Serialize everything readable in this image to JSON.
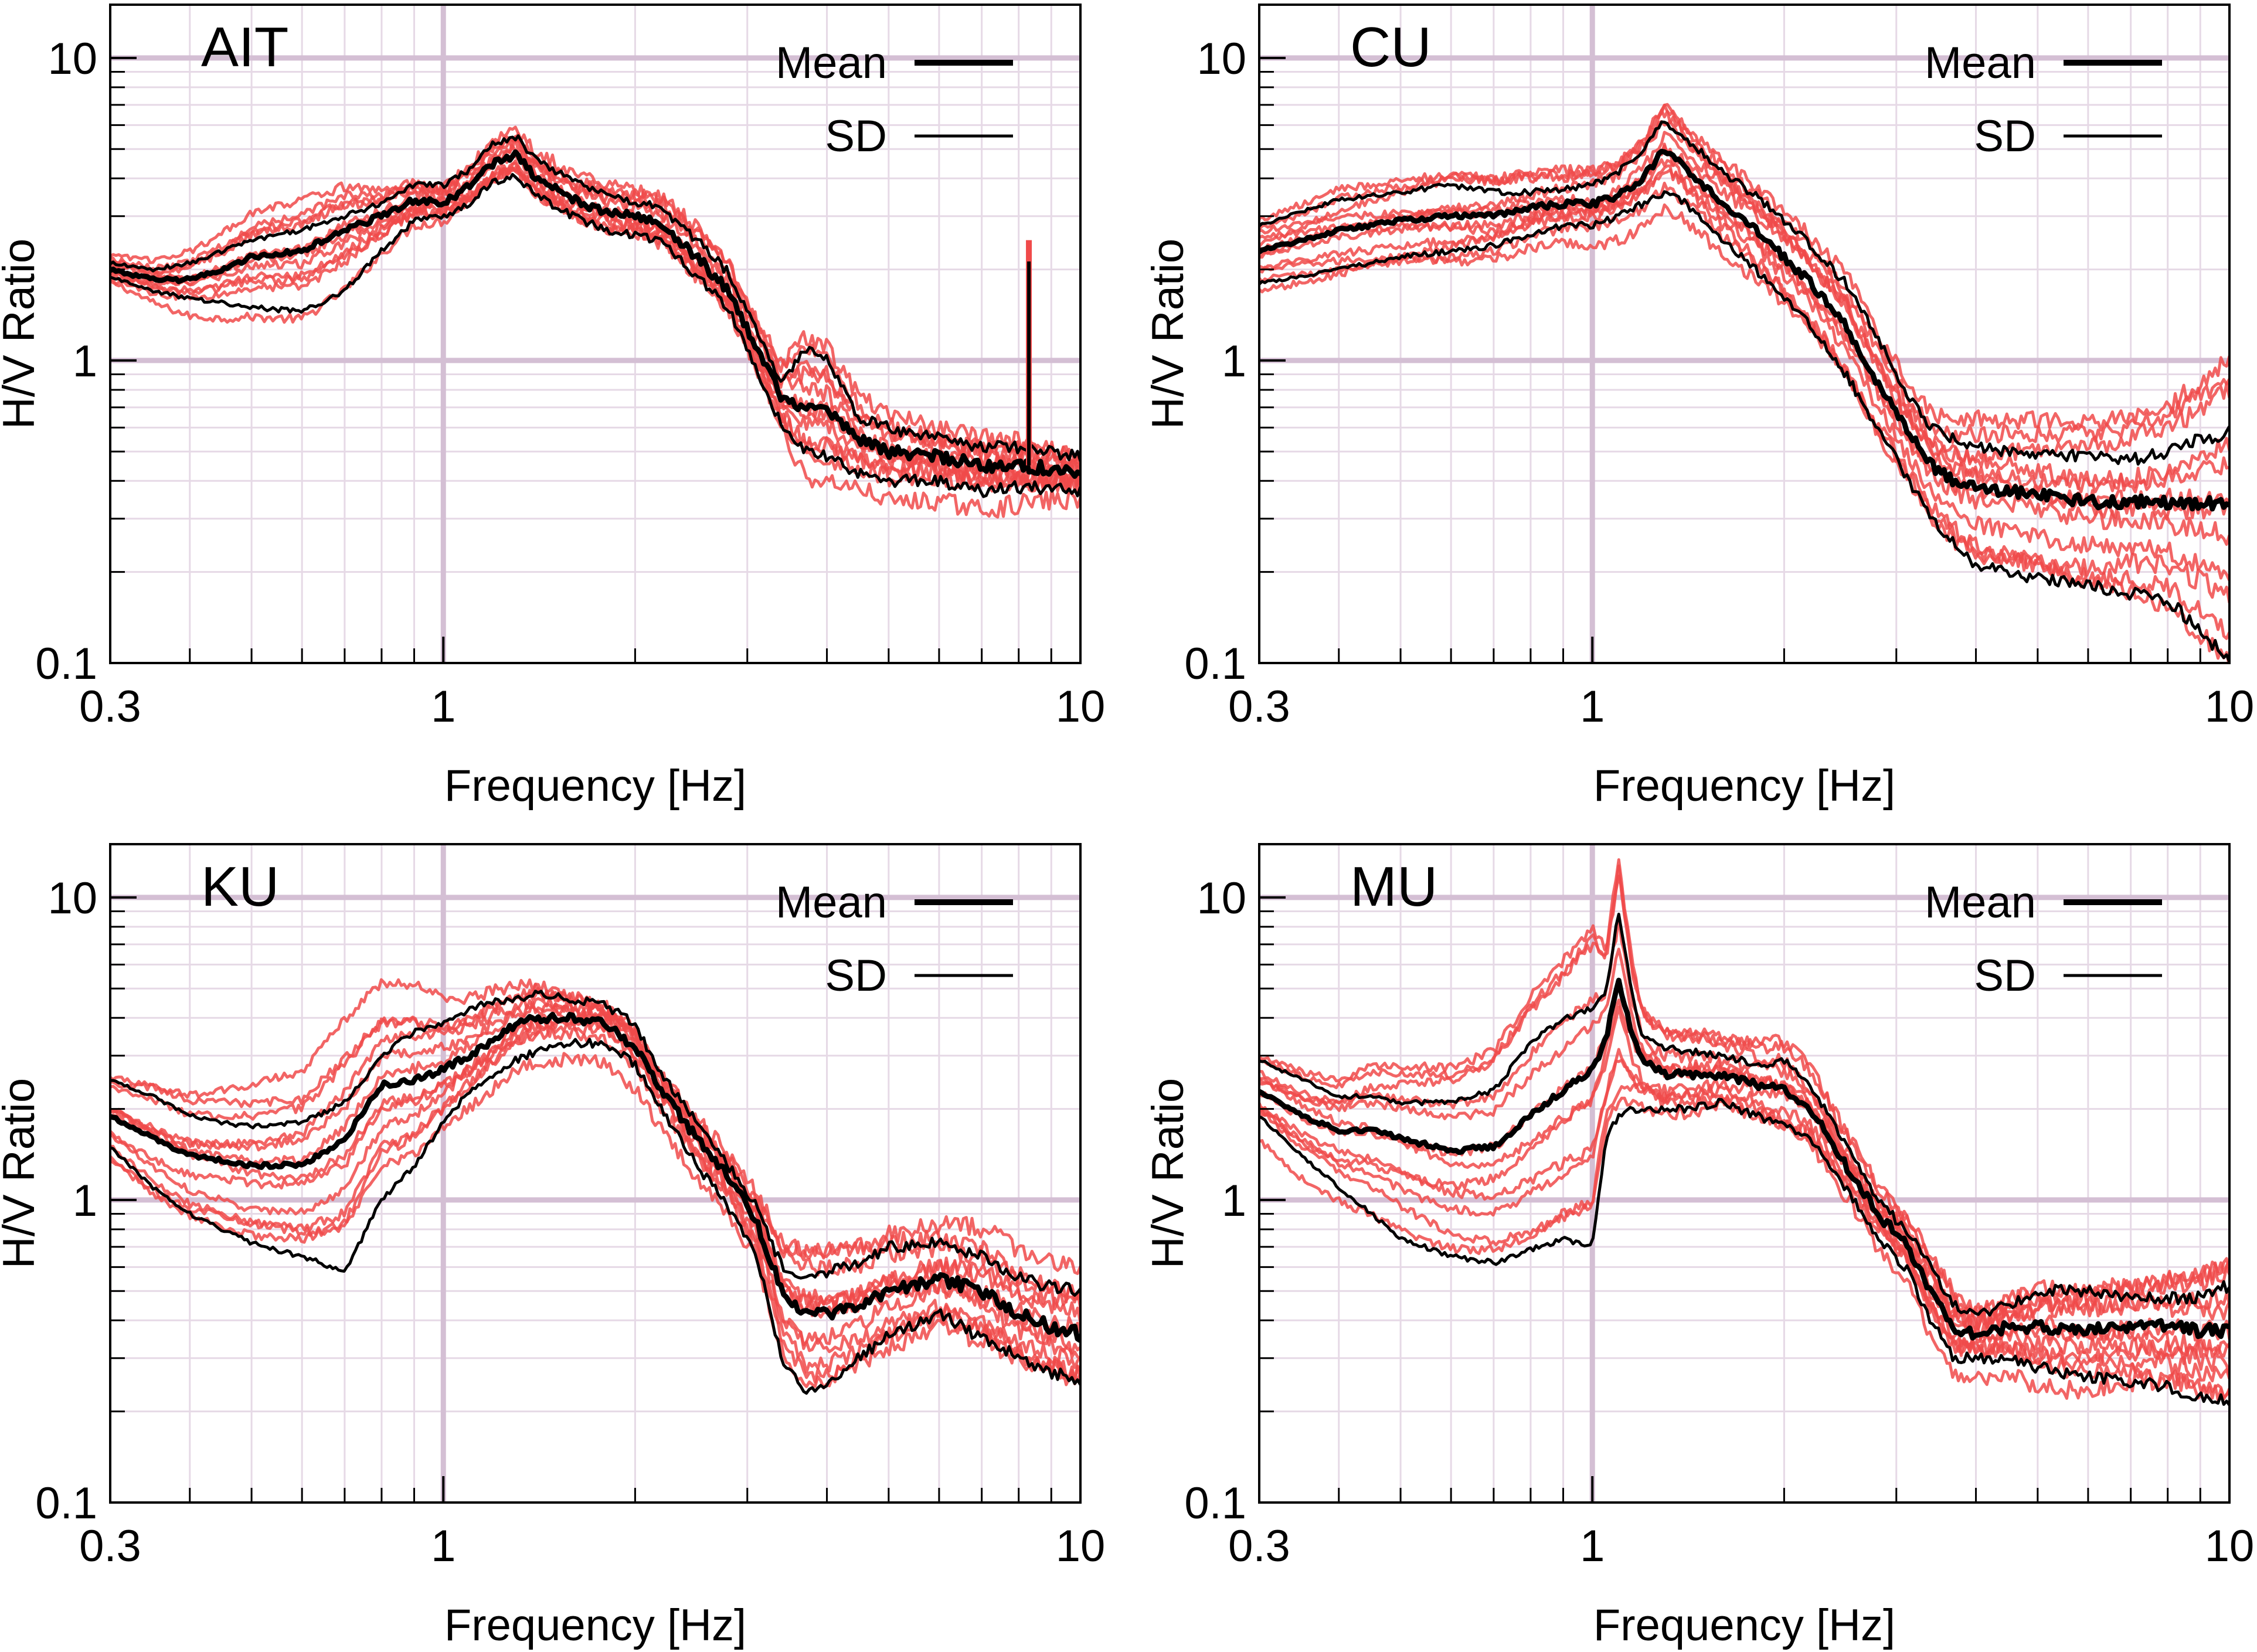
{
  "figure": {
    "description_colors": {
      "mean": "#000000",
      "sd": "#000000",
      "record": "#f04a4a",
      "grid_major": "#d4bfd4",
      "grid_minor": "#e6d9e6"
    }
  },
  "chart_data": [
    {
      "type": "line",
      "title": "AIT",
      "xlabel": "Frequency [Hz]",
      "ylabel": "H/V Ratio",
      "xscale": "log",
      "yscale": "log",
      "xlim": [
        0.3,
        10
      ],
      "ylim": [
        0.1,
        15
      ],
      "xticks": [
        {
          "v": 0.3,
          "label": "0.3"
        },
        {
          "v": 1,
          "label": "1"
        },
        {
          "v": 10,
          "label": "10"
        }
      ],
      "yticks": [
        {
          "v": 0.1,
          "label": "0.1"
        },
        {
          "v": 1,
          "label": "1"
        },
        {
          "v": 10,
          "label": "10"
        }
      ],
      "legend": [
        {
          "label": "Mean",
          "series": "Mean"
        },
        {
          "label": "SD",
          "series": "SD"
        }
      ],
      "spike": {
        "x": 8.3,
        "y": 2.5
      },
      "series": [
        {
          "name": "Mean",
          "role": "mean",
          "x": [
            0.3,
            0.35,
            0.4,
            0.45,
            0.5,
            0.6,
            0.7,
            0.8,
            0.9,
            1.0,
            1.1,
            1.2,
            1.3,
            1.4,
            1.6,
            1.8,
            2.0,
            2.2,
            2.5,
            2.8,
            3.1,
            3.4,
            3.7,
            4.0,
            4.5,
            5,
            6,
            7,
            8,
            9,
            10
          ],
          "y": [
            2.0,
            1.85,
            1.85,
            2.0,
            2.2,
            2.3,
            2.7,
            3.0,
            3.4,
            3.3,
            3.8,
            4.5,
            4.8,
            4.0,
            3.4,
            3.1,
            3.0,
            2.8,
            2.2,
            1.7,
            1.1,
            0.75,
            0.7,
            0.68,
            0.55,
            0.5,
            0.48,
            0.45,
            0.45,
            0.44,
            0.42
          ]
        },
        {
          "name": "SD upper",
          "role": "sd",
          "x": [
            0.3,
            0.35,
            0.4,
            0.45,
            0.5,
            0.6,
            0.7,
            0.8,
            0.9,
            1.0,
            1.1,
            1.2,
            1.3,
            1.4,
            1.6,
            1.8,
            2.0,
            2.2,
            2.5,
            2.8,
            3.1,
            3.4,
            3.7,
            4.0,
            4.5,
            5,
            6,
            7,
            8,
            9,
            10
          ],
          "y": [
            2.1,
            2.0,
            2.1,
            2.3,
            2.5,
            2.7,
            3.0,
            3.3,
            3.8,
            3.8,
            4.3,
            5.2,
            5.5,
            4.6,
            3.9,
            3.5,
            3.3,
            3.2,
            2.5,
            1.95,
            1.25,
            0.85,
            1.1,
            1.0,
            0.65,
            0.6,
            0.55,
            0.52,
            0.52,
            0.5,
            0.48
          ]
        },
        {
          "name": "SD lower",
          "role": "sd",
          "x": [
            0.3,
            0.35,
            0.4,
            0.45,
            0.5,
            0.6,
            0.7,
            0.8,
            0.9,
            1.0,
            1.1,
            1.2,
            1.3,
            1.4,
            1.6,
            1.8,
            2.0,
            2.2,
            2.5,
            2.8,
            3.1,
            3.4,
            3.7,
            4.0,
            4.5,
            5,
            6,
            7,
            8,
            9,
            10
          ],
          "y": [
            1.9,
            1.7,
            1.6,
            1.55,
            1.5,
            1.45,
            1.7,
            2.3,
            2.9,
            3.0,
            3.3,
            3.9,
            4.1,
            3.5,
            3.0,
            2.7,
            2.6,
            2.5,
            1.9,
            1.5,
            0.95,
            0.6,
            0.5,
            0.48,
            0.42,
            0.4,
            0.4,
            0.37,
            0.38,
            0.38,
            0.37
          ]
        }
      ]
    },
    {
      "type": "line",
      "title": "CU",
      "xlabel": "Frequency [Hz]",
      "ylabel": "H/V Ratio",
      "xscale": "log",
      "yscale": "log",
      "xlim": [
        0.3,
        10
      ],
      "ylim": [
        0.1,
        15
      ],
      "xticks": [
        {
          "v": 0.3,
          "label": "0.3"
        },
        {
          "v": 1,
          "label": "1"
        },
        {
          "v": 10,
          "label": "10"
        }
      ],
      "yticks": [
        {
          "v": 0.1,
          "label": "0.1"
        },
        {
          "v": 1,
          "label": "1"
        },
        {
          "v": 10,
          "label": "10"
        }
      ],
      "legend": [
        {
          "label": "Mean",
          "series": "Mean"
        },
        {
          "label": "SD",
          "series": "SD"
        }
      ],
      "series": [
        {
          "name": "Mean",
          "role": "mean",
          "x": [
            0.3,
            0.35,
            0.4,
            0.45,
            0.5,
            0.6,
            0.7,
            0.8,
            0.9,
            1.0,
            1.1,
            1.2,
            1.3,
            1.4,
            1.6,
            1.8,
            2.0,
            2.2,
            2.5,
            2.8,
            3.1,
            3.4,
            3.7,
            4.0,
            4.5,
            5,
            6,
            7,
            8,
            9,
            10
          ],
          "y": [
            2.3,
            2.5,
            2.7,
            2.8,
            2.9,
            3.0,
            3.0,
            3.2,
            3.3,
            3.3,
            3.5,
            4.0,
            5.0,
            4.3,
            3.3,
            2.7,
            2.2,
            1.8,
            1.3,
            0.85,
            0.6,
            0.45,
            0.4,
            0.38,
            0.37,
            0.36,
            0.34,
            0.34,
            0.34,
            0.34,
            0.34
          ]
        },
        {
          "name": "SD upper",
          "role": "sd",
          "x": [
            0.3,
            0.35,
            0.4,
            0.45,
            0.5,
            0.6,
            0.7,
            0.8,
            0.9,
            1.0,
            1.1,
            1.2,
            1.3,
            1.4,
            1.6,
            1.8,
            2.0,
            2.2,
            2.5,
            2.8,
            3.1,
            3.4,
            3.7,
            4.0,
            4.5,
            5,
            6,
            7,
            8,
            9,
            10
          ],
          "y": [
            2.8,
            3.1,
            3.4,
            3.5,
            3.6,
            3.8,
            3.6,
            3.6,
            3.7,
            3.8,
            4.2,
            5.0,
            6.2,
            5.4,
            4.2,
            3.5,
            2.9,
            2.4,
            1.8,
            1.2,
            0.8,
            0.6,
            0.55,
            0.52,
            0.5,
            0.49,
            0.48,
            0.47,
            0.5,
            0.55,
            0.58
          ]
        },
        {
          "name": "SD lower",
          "role": "sd",
          "x": [
            0.3,
            0.35,
            0.4,
            0.45,
            0.5,
            0.6,
            0.7,
            0.8,
            0.9,
            1.0,
            1.1,
            1.2,
            1.3,
            1.4,
            1.6,
            1.8,
            2.0,
            2.2,
            2.5,
            2.8,
            3.1,
            3.4,
            3.7,
            4.0,
            4.5,
            5,
            6,
            7,
            8,
            9,
            10
          ],
          "y": [
            1.8,
            1.9,
            2.0,
            2.1,
            2.2,
            2.3,
            2.4,
            2.6,
            2.8,
            2.8,
            3.0,
            3.3,
            3.6,
            3.3,
            2.5,
            2.0,
            1.6,
            1.3,
            0.9,
            0.6,
            0.42,
            0.3,
            0.25,
            0.21,
            0.2,
            0.19,
            0.18,
            0.17,
            0.16,
            0.13,
            0.1
          ]
        }
      ]
    },
    {
      "type": "line",
      "title": "KU",
      "xlabel": "Frequency [Hz]",
      "ylabel": "H/V Ratio",
      "xscale": "log",
      "yscale": "log",
      "xlim": [
        0.3,
        10
      ],
      "ylim": [
        0.1,
        15
      ],
      "xticks": [
        {
          "v": 0.3,
          "label": "0.3"
        },
        {
          "v": 1,
          "label": "1"
        },
        {
          "v": 10,
          "label": "10"
        }
      ],
      "yticks": [
        {
          "v": 0.1,
          "label": "0.1"
        },
        {
          "v": 1,
          "label": "1"
        },
        {
          "v": 10,
          "label": "10"
        }
      ],
      "legend": [
        {
          "label": "Mean",
          "series": "Mean"
        },
        {
          "label": "SD",
          "series": "SD"
        }
      ],
      "series": [
        {
          "name": "Mean",
          "role": "mean",
          "x": [
            0.3,
            0.35,
            0.4,
            0.45,
            0.5,
            0.6,
            0.7,
            0.8,
            0.9,
            1.0,
            1.1,
            1.2,
            1.3,
            1.4,
            1.6,
            1.8,
            2.0,
            2.2,
            2.5,
            2.8,
            3.1,
            3.4,
            3.7,
            4.0,
            4.5,
            5,
            6,
            7,
            8,
            9,
            10
          ],
          "y": [
            1.9,
            1.6,
            1.4,
            1.35,
            1.3,
            1.3,
            1.6,
            2.4,
            2.5,
            2.7,
            3.0,
            3.4,
            3.8,
            4.0,
            4.0,
            3.8,
            3.2,
            2.3,
            1.6,
            1.2,
            0.85,
            0.5,
            0.42,
            0.42,
            0.45,
            0.5,
            0.55,
            0.5,
            0.42,
            0.38,
            0.36
          ]
        },
        {
          "name": "SD upper",
          "role": "sd",
          "x": [
            0.3,
            0.35,
            0.4,
            0.45,
            0.5,
            0.6,
            0.7,
            0.8,
            0.9,
            1.0,
            1.1,
            1.2,
            1.3,
            1.4,
            1.6,
            1.8,
            2.0,
            2.2,
            2.5,
            2.8,
            3.1,
            3.4,
            3.7,
            4.0,
            4.5,
            5,
            6,
            7,
            8,
            9,
            10
          ],
          "y": [
            2.5,
            2.2,
            1.9,
            1.8,
            1.75,
            1.8,
            2.1,
            3.0,
            3.6,
            3.8,
            4.3,
            4.5,
            4.6,
            4.8,
            4.6,
            4.4,
            3.8,
            2.6,
            1.8,
            1.3,
            0.95,
            0.6,
            0.55,
            0.58,
            0.62,
            0.7,
            0.72,
            0.65,
            0.55,
            0.52,
            0.5
          ]
        },
        {
          "name": "SD lower",
          "role": "sd",
          "x": [
            0.3,
            0.35,
            0.4,
            0.45,
            0.5,
            0.6,
            0.7,
            0.8,
            0.9,
            1.0,
            1.1,
            1.2,
            1.3,
            1.4,
            1.6,
            1.8,
            2.0,
            2.2,
            2.5,
            2.8,
            3.1,
            3.4,
            3.7,
            4.0,
            4.5,
            5,
            6,
            7,
            8,
            9,
            10
          ],
          "y": [
            1.5,
            1.1,
            0.9,
            0.8,
            0.72,
            0.65,
            0.58,
            1.0,
            1.3,
            1.8,
            2.3,
            2.6,
            2.9,
            3.1,
            3.3,
            3.3,
            2.8,
            2.0,
            1.3,
            0.95,
            0.65,
            0.3,
            0.23,
            0.25,
            0.3,
            0.36,
            0.42,
            0.35,
            0.3,
            0.27,
            0.25
          ]
        }
      ]
    },
    {
      "type": "line",
      "title": "MU",
      "xlabel": "Frequency [Hz]",
      "ylabel": "H/V Ratio",
      "xscale": "log",
      "yscale": "log",
      "xlim": [
        0.3,
        10
      ],
      "ylim": [
        0.1,
        15
      ],
      "xticks": [
        {
          "v": 0.3,
          "label": "0.3"
        },
        {
          "v": 1,
          "label": "1"
        },
        {
          "v": 10,
          "label": "10"
        }
      ],
      "yticks": [
        {
          "v": 0.1,
          "label": "0.1"
        },
        {
          "v": 1,
          "label": "1"
        },
        {
          "v": 10,
          "label": "10"
        }
      ],
      "legend": [
        {
          "label": "Mean",
          "series": "Mean"
        },
        {
          "label": "SD",
          "series": "SD"
        }
      ],
      "series": [
        {
          "name": "Mean",
          "role": "mean",
          "x": [
            0.3,
            0.35,
            0.4,
            0.45,
            0.5,
            0.6,
            0.7,
            0.8,
            0.9,
            1.0,
            1.05,
            1.1,
            1.15,
            1.2,
            1.3,
            1.4,
            1.6,
            1.8,
            2.0,
            2.2,
            2.5,
            2.8,
            3.1,
            3.4,
            3.7,
            4.0,
            4.5,
            5,
            6,
            7,
            8,
            9,
            10
          ],
          "y": [
            2.3,
            1.9,
            1.7,
            1.7,
            1.6,
            1.45,
            1.5,
            1.9,
            2.3,
            2.7,
            3.4,
            5.3,
            3.6,
            2.9,
            2.6,
            2.6,
            2.6,
            2.4,
            2.3,
            2.0,
            1.3,
            0.9,
            0.72,
            0.5,
            0.38,
            0.36,
            0.38,
            0.38,
            0.37,
            0.38,
            0.38,
            0.37,
            0.37
          ]
        },
        {
          "name": "SD upper",
          "role": "sd",
          "x": [
            0.3,
            0.35,
            0.4,
            0.45,
            0.5,
            0.6,
            0.7,
            0.8,
            0.9,
            1.0,
            1.05,
            1.1,
            1.15,
            1.2,
            1.3,
            1.4,
            1.6,
            1.8,
            2.0,
            2.2,
            2.5,
            2.8,
            3.1,
            3.4,
            3.7,
            4.0,
            4.5,
            5,
            6,
            7,
            8,
            9,
            10
          ],
          "y": [
            2.9,
            2.5,
            2.2,
            2.2,
            2.1,
            2.1,
            2.3,
            3.3,
            4.0,
            4.3,
            4.8,
            9.0,
            5.0,
            3.4,
            3.2,
            3.1,
            3.0,
            2.8,
            2.9,
            2.4,
            1.5,
            1.0,
            0.8,
            0.6,
            0.45,
            0.42,
            0.45,
            0.5,
            0.5,
            0.48,
            0.47,
            0.48,
            0.52
          ]
        },
        {
          "name": "SD lower",
          "role": "sd",
          "x": [
            0.3,
            0.35,
            0.4,
            0.45,
            0.5,
            0.6,
            0.7,
            0.8,
            0.9,
            1.0,
            1.05,
            1.1,
            1.15,
            1.2,
            1.3,
            1.4,
            1.6,
            1.8,
            2.0,
            2.2,
            2.5,
            2.8,
            3.1,
            3.4,
            3.7,
            4.0,
            4.5,
            5,
            6,
            7,
            8,
            9,
            10
          ],
          "y": [
            1.9,
            1.4,
            1.1,
            0.9,
            0.75,
            0.65,
            0.62,
            0.68,
            0.75,
            0.7,
            1.6,
            1.9,
            2.0,
            2.0,
            2.0,
            2.0,
            2.1,
            1.9,
            1.8,
            1.6,
            1.1,
            0.75,
            0.6,
            0.4,
            0.3,
            0.3,
            0.3,
            0.28,
            0.26,
            0.25,
            0.24,
            0.22,
            0.22
          ]
        }
      ]
    }
  ]
}
